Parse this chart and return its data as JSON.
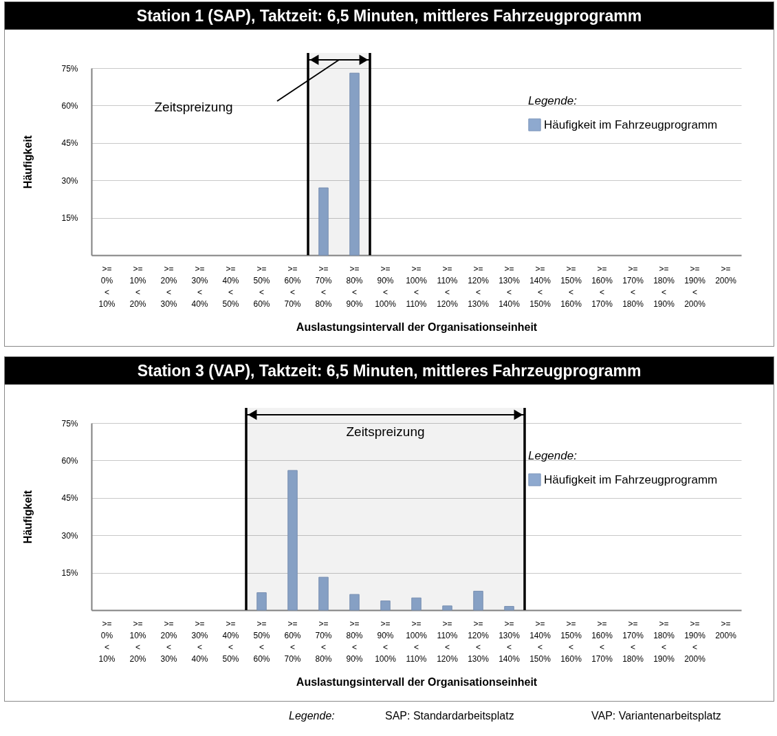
{
  "chart_data": [
    {
      "type": "bar",
      "title": "Station 1 (SAP), Taktzeit: 6,5 Minuten, mittleres Fahrzeugprogramm",
      "xlabel": "Auslastungsintervall der Organisationseinheit",
      "ylabel": "Häufigkeit",
      "legend_title": "Legende:",
      "categories": [
        ">=\n0%\n<\n10%",
        ">=\n10%\n<\n20%",
        ">=\n20%\n<\n30%",
        ">=\n30%\n<\n40%",
        ">=\n40%\n<\n50%",
        ">=\n50%\n<\n60%",
        ">=\n60%\n<\n70%",
        ">=\n70%\n<\n80%",
        ">=\n80%\n<\n90%",
        ">=\n90%\n<\n100%",
        ">=\n100%\n<\n110%",
        ">=\n110%\n<\n120%",
        ">=\n120%\n<\n130%",
        ">=\n130%\n<\n140%",
        ">=\n140%\n<\n150%",
        ">=\n150%\n<\n160%",
        ">=\n160%\n<\n170%",
        ">=\n170%\n<\n180%",
        ">=\n180%\n<\n190%",
        ">=\n190%\n<\n200%",
        ">=\n200%"
      ],
      "series": [
        {
          "name": "Häufigkeit im Fahrzeugprogramm",
          "color": "#8ea9cf",
          "values": [
            null,
            null,
            null,
            null,
            null,
            null,
            null,
            27,
            73,
            null,
            null,
            null,
            null,
            null,
            null,
            null,
            null,
            null,
            null,
            null,
            null
          ]
        }
      ],
      "ylim": [
        0,
        75
      ],
      "yticks": [
        {
          "value": 15,
          "label": "15%"
        },
        {
          "value": 30,
          "label": "30%"
        },
        {
          "value": 45,
          "label": "45%"
        },
        {
          "value": 60,
          "label": "60%"
        },
        {
          "value": 75,
          "label": "75%"
        }
      ],
      "bands": [
        {
          "axis": "x",
          "from": ">=\n70%\n<\n80%",
          "to": ">=\n80%\n<\n90%",
          "label": "Zeitspreizung",
          "color": "#000000"
        }
      ],
      "grid": "y",
      "legend": "right"
    },
    {
      "type": "bar",
      "title": "Station 3 (VAP), Taktzeit: 6,5 Minuten, mittleres Fahrzeugprogramm",
      "xlabel": "Auslastungsintervall der Organisationseinheit",
      "ylabel": "Häufigkeit",
      "legend_title": "Legende:",
      "categories": [
        ">=\n0%\n<\n10%",
        ">=\n10%\n<\n20%",
        ">=\n20%\n<\n30%",
        ">=\n30%\n<\n40%",
        ">=\n40%\n<\n50%",
        ">=\n50%\n<\n60%",
        ">=\n60%\n<\n70%",
        ">=\n70%\n<\n80%",
        ">=\n80%\n<\n90%",
        ">=\n90%\n<\n100%",
        ">=\n100%\n<\n110%",
        ">=\n110%\n<\n120%",
        ">=\n120%\n<\n130%",
        ">=\n130%\n<\n140%",
        ">=\n140%\n<\n150%",
        ">=\n150%\n<\n160%",
        ">=\n160%\n<\n170%",
        ">=\n170%\n<\n180%",
        ">=\n180%\n<\n190%",
        ">=\n190%\n<\n200%",
        ">=\n200%"
      ],
      "series": [
        {
          "name": "Häufigkeit im Fahrzeugprogramm",
          "color": "#8ea9cf",
          "values": [
            null,
            null,
            null,
            null,
            null,
            7,
            56,
            13.2,
            6.3,
            3.7,
            4.9,
            1.7,
            7.6,
            1.5,
            null,
            null,
            null,
            null,
            null,
            null,
            null
          ]
        }
      ],
      "ylim": [
        0,
        75
      ],
      "yticks": [
        {
          "value": 15,
          "label": "15%"
        },
        {
          "value": 30,
          "label": "30%"
        },
        {
          "value": 45,
          "label": "45%"
        },
        {
          "value": 60,
          "label": "60%"
        },
        {
          "value": 75,
          "label": "75%"
        }
      ],
      "bands": [
        {
          "axis": "x",
          "from": ">=\n50%\n<\n60%",
          "to": ">=\n130%\n<\n140%",
          "label": "Zeitspreizung",
          "color": "#000000"
        }
      ],
      "grid": "y",
      "legend": "right",
      "annotations": [
        "Legende:",
        "SAP: Standardarbeitsplatz",
        "VAP: Variantenarbeitsplatz"
      ]
    }
  ]
}
